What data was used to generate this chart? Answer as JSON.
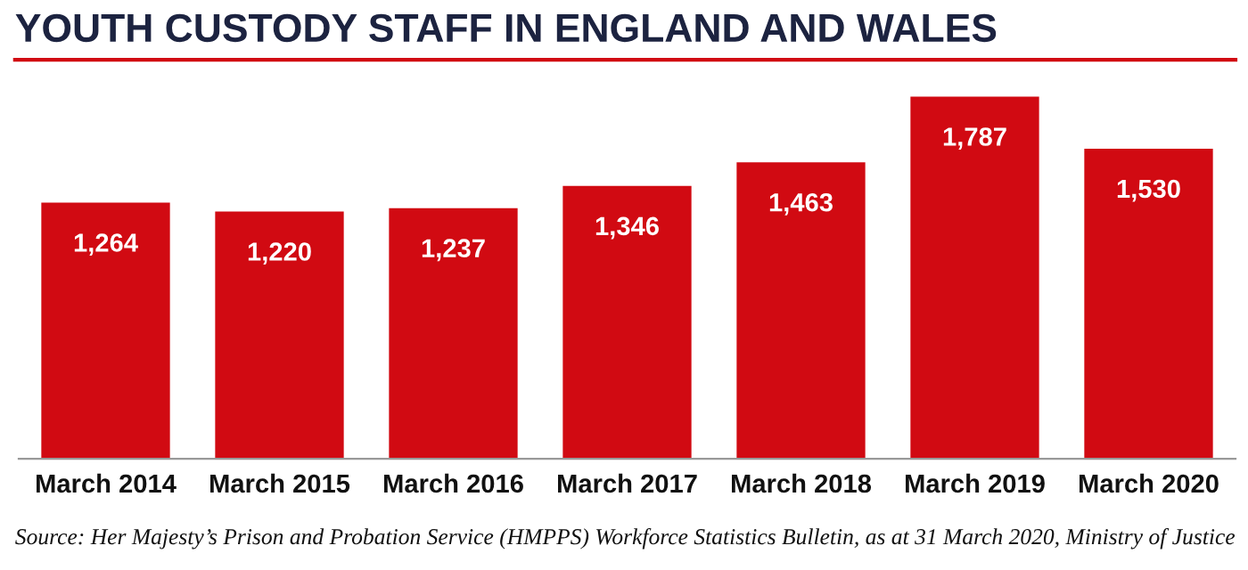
{
  "chart_data": {
    "type": "bar",
    "title": "YOUTH CUSTODY STAFF IN ENGLAND AND WALES",
    "categories": [
      "March 2014",
      "March 2015",
      "March 2016",
      "March 2017",
      "March 2018",
      "March 2019",
      "March 2020"
    ],
    "values": [
      1264,
      1220,
      1237,
      1346,
      1463,
      1787,
      1530
    ],
    "color": "#d10a12",
    "value_labels": [
      "1,264",
      "1,220",
      "1,237",
      "1,346",
      "1,463",
      "1,787",
      "1,530"
    ],
    "grid": false,
    "legend": false,
    "annotations": [
      "Source: Her Majesty’s Prison and Probation Service (HMPPS) Workforce Statistics Bulletin, as at 31 March 2020, Ministry of Justice"
    ]
  }
}
